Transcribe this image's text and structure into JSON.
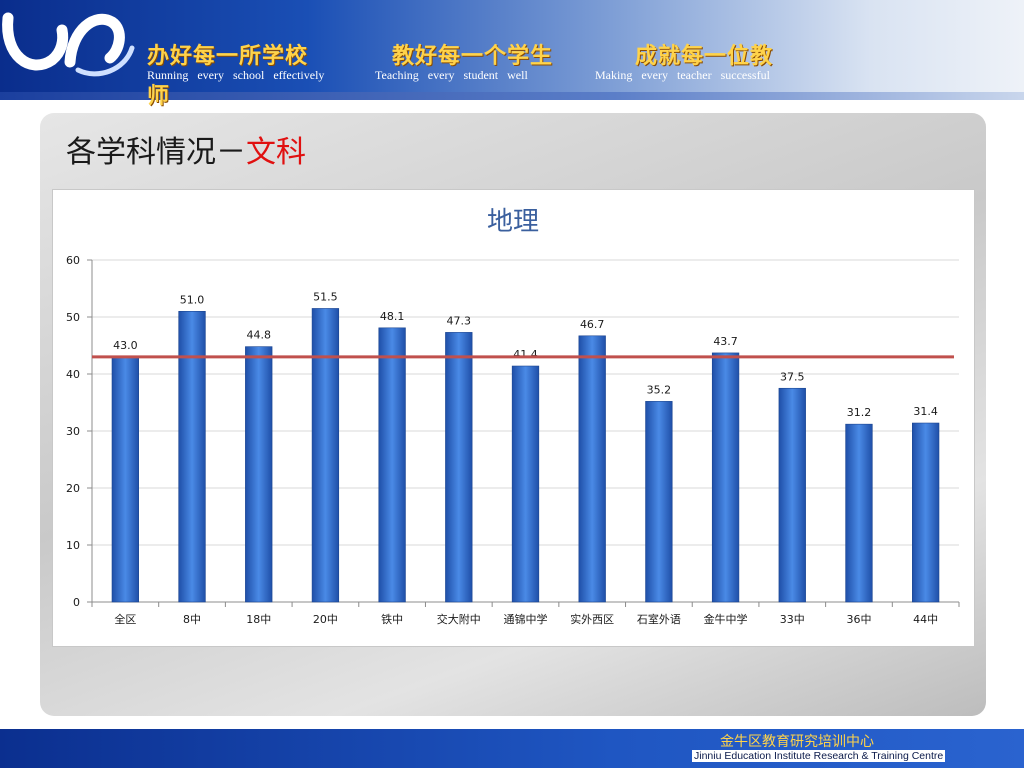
{
  "header": {
    "slogans_cn": [
      "办好每一所学校",
      "教好每一个学生",
      "成就每一位教"
    ],
    "slogan_wrap": "师",
    "slogans_en": [
      "Running every school effectively",
      "Teaching every student well",
      "Making every teacher successful"
    ]
  },
  "slide": {
    "title_prefix": "各学科情况－",
    "title_highlight": "文科"
  },
  "footer": {
    "org_cn": "金牛区教育研究培训中心",
    "org_en": "Jinniu Education Institute Research & Training Centre"
  },
  "colors": {
    "bar": "#2e6fd0",
    "reference_line": "#c0504d",
    "title_highlight": "#e01010"
  },
  "chart_data": {
    "type": "bar",
    "title": "地理",
    "xlabel": "",
    "ylabel": "",
    "categories": [
      "全区",
      "8中",
      "18中",
      "20中",
      "铁中",
      "交大附中",
      "通锦中学",
      "实外西区",
      "石室外语",
      "金牛中学",
      "33中",
      "36中",
      "44中"
    ],
    "values": [
      43.0,
      51.0,
      44.8,
      51.5,
      48.1,
      47.3,
      41.4,
      46.7,
      35.2,
      43.7,
      37.5,
      31.2,
      31.4
    ],
    "value_labels": [
      "43.0",
      "51.0",
      "44.8",
      "51.5",
      "48.1",
      "47.3",
      "41.4",
      "46.7",
      "35.2",
      "43.7",
      "37.5",
      "31.2",
      "31.4"
    ],
    "y_ticks": [
      "0",
      "10",
      "20",
      "30",
      "40",
      "50",
      "60"
    ],
    "ylim": [
      0,
      60
    ],
    "reference_line_value": 43.0,
    "grid": true,
    "legend": false
  }
}
